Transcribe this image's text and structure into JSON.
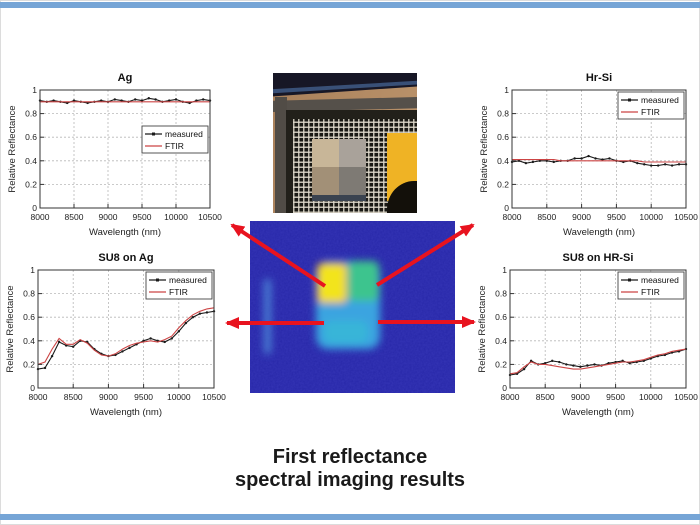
{
  "slide": {
    "caption": {
      "line1": "First reflectance",
      "line2": "spectral imaging results"
    },
    "accent_color": "#76a5d6",
    "arrow_color": "#e8131f"
  },
  "figures": {
    "thermal_colors": {
      "background": "#2727a8",
      "ag_region": "#f2e41e",
      "hrsi_region": "#3ec48e",
      "su8_region": "#3aa4e0",
      "streak": "#4a7fd4"
    }
  },
  "chart_data": [
    {
      "type": "line",
      "title": "Ag",
      "xlabel": "Wavelength (nm)",
      "ylabel": "Relative Reflectance",
      "xlim": [
        8000,
        10500
      ],
      "ylim": [
        0,
        1
      ],
      "xticks": [
        8000,
        8500,
        9000,
        9500,
        10000,
        10500
      ],
      "yticks": [
        0,
        0.2,
        0.4,
        0.6,
        0.8,
        1
      ],
      "ytick_labels": [
        "0",
        "0.2",
        "0.4",
        "0.6",
        "0.8",
        "1"
      ],
      "grid": true,
      "legend_position": "right",
      "x": [
        8000,
        8100,
        8200,
        8300,
        8400,
        8500,
        8600,
        8700,
        8800,
        8900,
        9000,
        9100,
        9200,
        9300,
        9400,
        9500,
        9600,
        9700,
        9800,
        9900,
        10000,
        10100,
        10200,
        10300,
        10400,
        10500
      ],
      "series": [
        {
          "name": "measured",
          "color": "#1a1a1a",
          "marker": true,
          "values": [
            0.91,
            0.9,
            0.91,
            0.9,
            0.89,
            0.91,
            0.9,
            0.89,
            0.9,
            0.91,
            0.9,
            0.92,
            0.91,
            0.9,
            0.92,
            0.91,
            0.93,
            0.92,
            0.9,
            0.91,
            0.92,
            0.9,
            0.89,
            0.91,
            0.92,
            0.91
          ]
        },
        {
          "name": "FTIR",
          "color": "#cc4444",
          "marker": false,
          "values": [
            0.9,
            0.9,
            0.9,
            0.9,
            0.9,
            0.9,
            0.9,
            0.9,
            0.9,
            0.9,
            0.9,
            0.9,
            0.9,
            0.9,
            0.9,
            0.9,
            0.9,
            0.9,
            0.9,
            0.9,
            0.9,
            0.9,
            0.9,
            0.9,
            0.9,
            0.9
          ]
        }
      ]
    },
    {
      "type": "line",
      "title": "Hr-Si",
      "xlabel": "Wavelength (nm)",
      "ylabel": "Relative Reflectance",
      "xlim": [
        8000,
        10500
      ],
      "ylim": [
        0,
        1
      ],
      "xticks": [
        8000,
        8500,
        9000,
        9500,
        10000,
        10500
      ],
      "yticks": [
        0,
        0.2,
        0.4,
        0.6,
        0.8,
        1
      ],
      "ytick_labels": [
        "0",
        "0.2",
        "0.4",
        "0.6",
        "0.8",
        "1"
      ],
      "grid": true,
      "legend_position": "top-right",
      "x": [
        8000,
        8100,
        8200,
        8300,
        8400,
        8500,
        8600,
        8700,
        8800,
        8900,
        9000,
        9100,
        9200,
        9300,
        9400,
        9500,
        9600,
        9700,
        9800,
        9900,
        10000,
        10100,
        10200,
        10300,
        10400,
        10500
      ],
      "series": [
        {
          "name": "measured",
          "color": "#1a1a1a",
          "marker": true,
          "values": [
            0.39,
            0.4,
            0.38,
            0.39,
            0.4,
            0.4,
            0.39,
            0.4,
            0.4,
            0.42,
            0.42,
            0.44,
            0.42,
            0.41,
            0.42,
            0.4,
            0.39,
            0.4,
            0.38,
            0.37,
            0.36,
            0.36,
            0.37,
            0.36,
            0.37,
            0.37
          ]
        },
        {
          "name": "FTIR",
          "color": "#cc4444",
          "marker": false,
          "values": [
            0.41,
            0.41,
            0.41,
            0.41,
            0.41,
            0.41,
            0.41,
            0.4,
            0.4,
            0.4,
            0.4,
            0.4,
            0.4,
            0.4,
            0.4,
            0.4,
            0.4,
            0.4,
            0.4,
            0.39,
            0.39,
            0.39,
            0.39,
            0.39,
            0.39,
            0.39
          ]
        }
      ]
    },
    {
      "type": "line",
      "title": "SU8 on Ag",
      "xlabel": "Wavelength (nm)",
      "ylabel": "Relative Reflectance",
      "xlim": [
        8000,
        10500
      ],
      "ylim": [
        0,
        1
      ],
      "xticks": [
        8000,
        8500,
        9000,
        9500,
        10000,
        10500
      ],
      "yticks": [
        0,
        0.2,
        0.4,
        0.6,
        0.8,
        1
      ],
      "ytick_labels": [
        "0",
        "0.2",
        "0.4",
        "0.6",
        "0.8",
        "1"
      ],
      "grid": true,
      "legend_position": "top-right",
      "x": [
        8000,
        8100,
        8200,
        8300,
        8400,
        8500,
        8600,
        8700,
        8800,
        8900,
        9000,
        9100,
        9200,
        9300,
        9400,
        9500,
        9600,
        9700,
        9800,
        9900,
        10000,
        10100,
        10200,
        10300,
        10400,
        10500
      ],
      "series": [
        {
          "name": "measured",
          "color": "#1a1a1a",
          "marker": true,
          "values": [
            0.16,
            0.17,
            0.27,
            0.39,
            0.36,
            0.35,
            0.4,
            0.39,
            0.33,
            0.29,
            0.27,
            0.28,
            0.31,
            0.34,
            0.37,
            0.4,
            0.42,
            0.4,
            0.39,
            0.42,
            0.48,
            0.55,
            0.6,
            0.63,
            0.64,
            0.65
          ]
        },
        {
          "name": "FTIR",
          "color": "#cc4444",
          "marker": false,
          "values": [
            0.2,
            0.22,
            0.33,
            0.42,
            0.37,
            0.37,
            0.41,
            0.38,
            0.32,
            0.28,
            0.27,
            0.29,
            0.33,
            0.36,
            0.38,
            0.39,
            0.4,
            0.39,
            0.41,
            0.44,
            0.51,
            0.57,
            0.62,
            0.65,
            0.67,
            0.68
          ]
        }
      ]
    },
    {
      "type": "line",
      "title": "SU8 on HR-Si",
      "xlabel": "Wavelength (nm)",
      "ylabel": "Relative Reflectance",
      "xlim": [
        8000,
        10500
      ],
      "ylim": [
        0,
        1
      ],
      "xticks": [
        8000,
        8500,
        9000,
        9500,
        10000,
        10500
      ],
      "yticks": [
        0,
        0.2,
        0.4,
        0.6,
        0.8,
        1
      ],
      "ytick_labels": [
        "0",
        "0.2",
        "0.4",
        "0.6",
        "0.8",
        "1"
      ],
      "grid": true,
      "legend_position": "top-right",
      "x": [
        8000,
        8100,
        8200,
        8300,
        8400,
        8500,
        8600,
        8700,
        8800,
        8900,
        9000,
        9100,
        9200,
        9300,
        9400,
        9500,
        9600,
        9700,
        9800,
        9900,
        10000,
        10100,
        10200,
        10300,
        10400,
        10500
      ],
      "series": [
        {
          "name": "measured",
          "color": "#1a1a1a",
          "marker": true,
          "values": [
            0.11,
            0.12,
            0.16,
            0.23,
            0.2,
            0.21,
            0.23,
            0.22,
            0.2,
            0.19,
            0.18,
            0.19,
            0.2,
            0.19,
            0.21,
            0.22,
            0.23,
            0.21,
            0.22,
            0.23,
            0.25,
            0.27,
            0.28,
            0.3,
            0.31,
            0.33
          ]
        },
        {
          "name": "FTIR",
          "color": "#cc4444",
          "marker": false,
          "values": [
            0.12,
            0.13,
            0.18,
            0.22,
            0.2,
            0.2,
            0.19,
            0.18,
            0.17,
            0.16,
            0.16,
            0.17,
            0.18,
            0.19,
            0.2,
            0.21,
            0.22,
            0.22,
            0.23,
            0.24,
            0.26,
            0.28,
            0.29,
            0.31,
            0.32,
            0.33
          ]
        }
      ]
    }
  ]
}
